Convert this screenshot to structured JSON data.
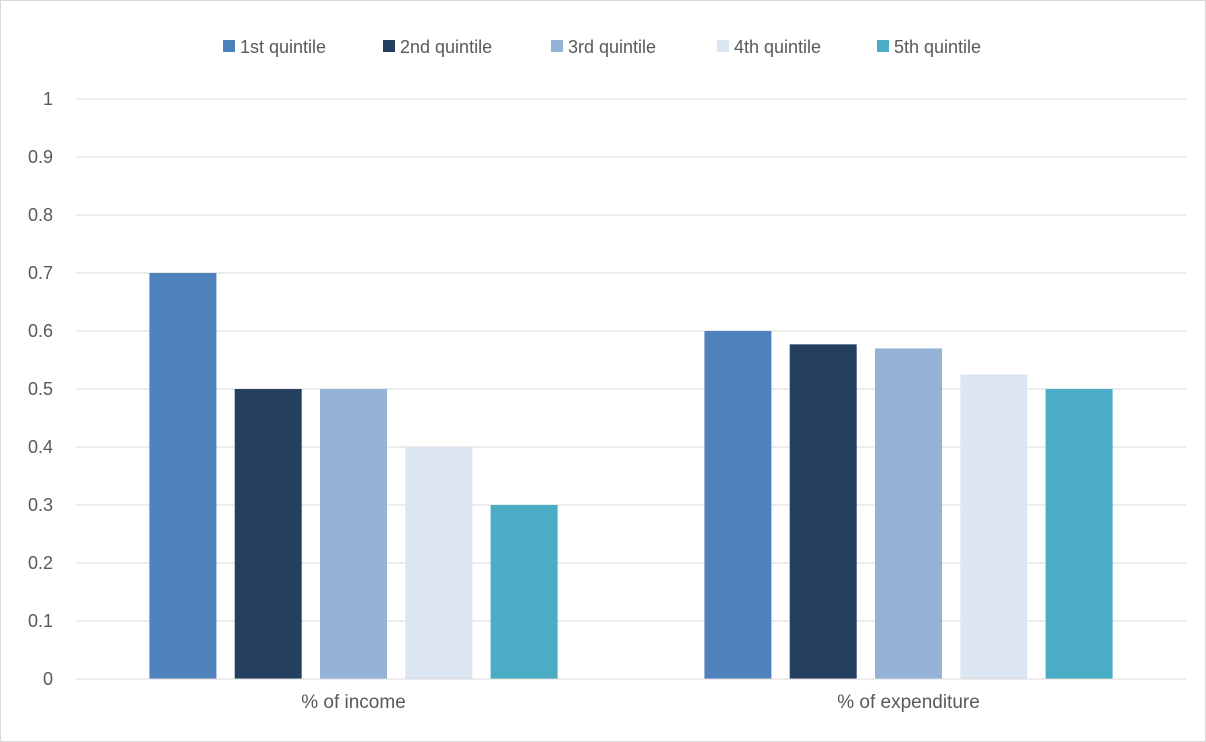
{
  "chart_data": {
    "type": "bar",
    "categories": [
      "% of income",
      "% of expenditure"
    ],
    "series": [
      {
        "name": "1st quintile",
        "values": [
          0.7,
          0.6
        ],
        "color": "#4F81BD"
      },
      {
        "name": "2nd quintile",
        "values": [
          0.5,
          0.577
        ],
        "color": "#243F60"
      },
      {
        "name": "3rd quintile",
        "values": [
          0.5,
          0.57
        ],
        "color": "#95B3D7"
      },
      {
        "name": "4th quintile",
        "values": [
          0.4,
          0.525
        ],
        "color": "#DCE6F2"
      },
      {
        "name": "5th quintile",
        "values": [
          0.3,
          0.5
        ],
        "color": "#4BACC6"
      }
    ],
    "yticks": [
      "0",
      "0.1",
      "0.2",
      "0.3",
      "0.4",
      "0.5",
      "0.6",
      "0.7",
      "0.8",
      "0.9",
      "1"
    ],
    "ylim": [
      0,
      1
    ],
    "grid": true,
    "legend_position": "top",
    "title": "",
    "xlabel": "",
    "ylabel": ""
  }
}
